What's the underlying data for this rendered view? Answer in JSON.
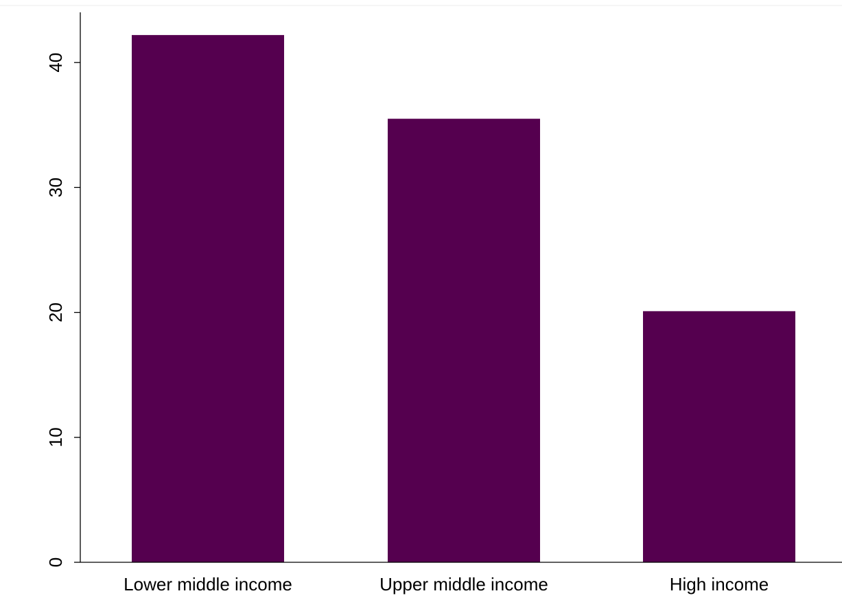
{
  "chart_data": {
    "type": "bar",
    "title": "",
    "xlabel": "",
    "ylabel": "",
    "categories": [
      "Lower middle income",
      "Upper middle income",
      "High income"
    ],
    "values": [
      42.2,
      35.5,
      20.1
    ],
    "ylim": [
      0,
      44
    ],
    "yticks": [
      0,
      10,
      20,
      30,
      40
    ],
    "ytick_labels": [
      "0",
      "10",
      "20",
      "30",
      "40"
    ],
    "grid": false,
    "legend": "none",
    "bar_color": "#55004f"
  }
}
